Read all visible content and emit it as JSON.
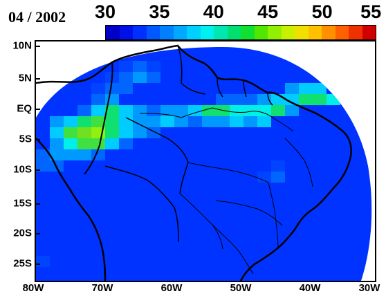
{
  "title": "04 / 2002",
  "colorbar": {
    "ticks": [
      "30",
      "35",
      "40",
      "45",
      "50",
      "55"
    ],
    "colors": [
      "#0000c8",
      "#0010e8",
      "#0030ff",
      "#0058ff",
      "#0080ff",
      "#00a8ff",
      "#00d0ff",
      "#00f0f0",
      "#00e8b0",
      "#00e070",
      "#10e030",
      "#50e800",
      "#90f000",
      "#c8f000",
      "#f0e000",
      "#ffc000",
      "#ff9000",
      "#ff6000",
      "#f03000",
      "#d00000"
    ]
  },
  "map": {
    "lat_labels": [
      "10N",
      "5N",
      "EQ",
      "5S",
      "10S",
      "15S",
      "20S",
      "25S"
    ],
    "lon_labels": [
      "80W",
      "70W",
      "60W",
      "50W",
      "40W",
      "30W"
    ],
    "background_color": "#0033ff",
    "grid_colors": {
      "c1": "#0044ff",
      "c2": "#0066ff",
      "c3": "#0099ff",
      "c4": "#00ccff",
      "c5": "#00f0e8",
      "c6": "#10e070",
      "c7": "#40e040",
      "c8": "#70e020",
      "c9": "#90f010"
    }
  }
}
